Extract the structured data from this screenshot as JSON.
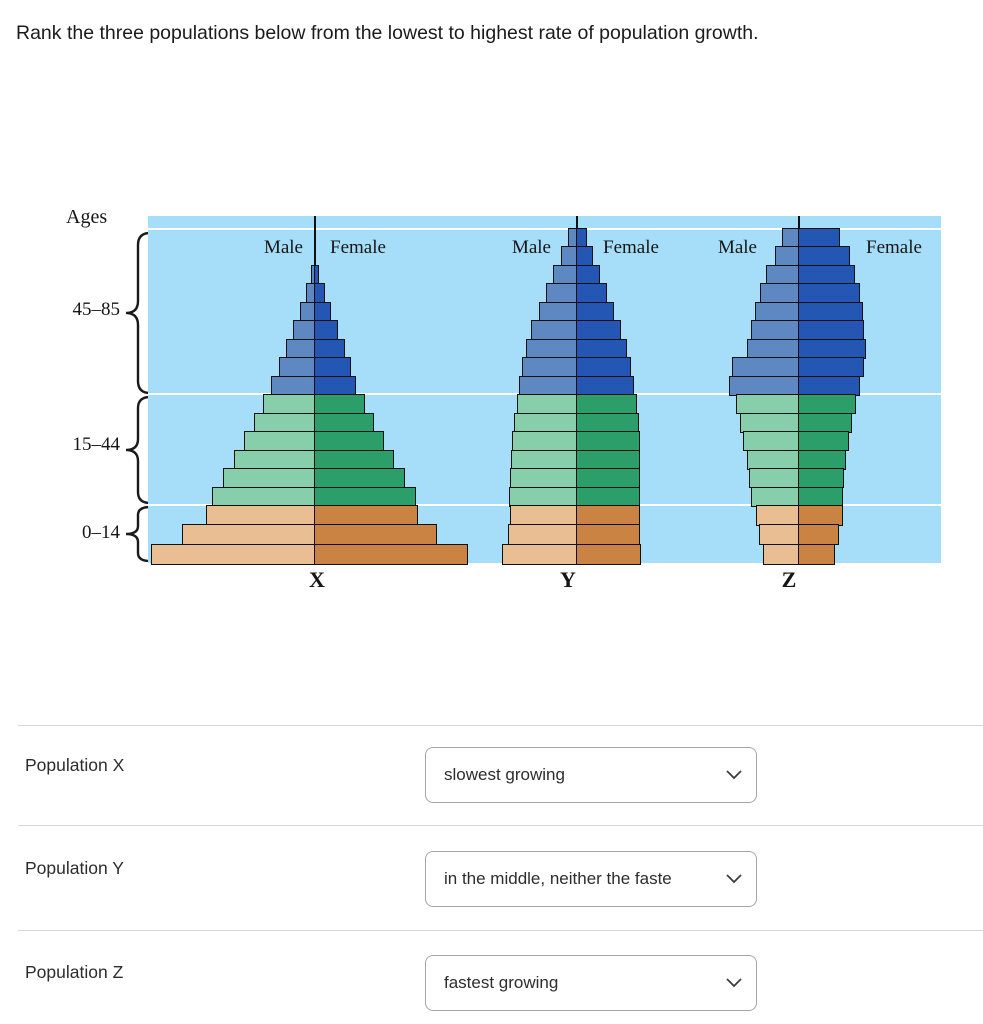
{
  "question": {
    "text": "Rank the three populations below from the lowest to highest rate of population growth."
  },
  "figure": {
    "background_color": "#a6ddf8",
    "ages_label": "Ages",
    "age_groups": [
      {
        "label": "45–85"
      },
      {
        "label": "15–44"
      },
      {
        "label": "0–14"
      }
    ],
    "colors": {
      "male_old": "#5d88c1",
      "female_old": "#2457b4",
      "male_middle": "#87cfab",
      "female_middle": "#2b9e69",
      "male_young": "#eabe93",
      "female_young": "#cb8344",
      "grid_line": "#ffffff",
      "bar_border": "#101010"
    }
  },
  "chart_data": {
    "type": "population_pyramid",
    "note": "Three population pyramids; bar half-widths are relative pixels (no numeric axis shown). Rows listed top to bottom within each age section.",
    "age_sections_order_top_to_bottom": [
      "45–85 (old, blue)",
      "15–44 (middle, green)",
      "0–14 (young, orange)"
    ],
    "panels": [
      {
        "name": "X",
        "male_label": "Male",
        "female_label": "Female",
        "shape": "expansive triangle (broad base)",
        "sections": {
          "old": {
            "male": [
              4,
              9,
              15,
              22,
              29,
              36,
              44
            ],
            "female": [
              4,
              10,
              16,
              23,
              30,
              36,
              41
            ]
          },
          "middle": {
            "male": [
              52,
              61,
              71,
              81,
              92,
              103
            ],
            "female": [
              50,
              59,
              69,
              79,
              90,
              101
            ]
          },
          "young": {
            "male": [
              109,
              133,
              164
            ],
            "female": [
              103,
              122,
              153
            ]
          }
        }
      },
      {
        "name": "Y",
        "male_label": "Male",
        "female_label": "Female",
        "shape": "tall dome with near-vertical sides",
        "sections": {
          "old": {
            "male": [
              9,
              16,
              24,
              31,
              38,
              46,
              51,
              55,
              58
            ],
            "female": [
              10,
              16,
              23,
              30,
              37,
              44,
              50,
              54,
              57
            ]
          },
          "middle": {
            "male": [
              60,
              63,
              65,
              66,
              67,
              68
            ],
            "female": [
              60,
              62,
              63,
              63,
              63,
              63
            ]
          },
          "young": {
            "male": [
              67,
              69,
              75
            ],
            "female": [
              63,
              63,
              64
            ]
          }
        }
      },
      {
        "name": "Z",
        "male_label": "Male",
        "female_label": "Female",
        "shape": "barrel, widest in middle, narrow base",
        "sections": {
          "old": {
            "male": [
              17,
              24,
              33,
              39,
              44,
              48,
              52,
              67,
              70
            ],
            "female": [
              41,
              51,
              56,
              61,
              64,
              65,
              67,
              65,
              61
            ]
          },
          "middle": {
            "male": [
              63,
              59,
              56,
              52,
              50,
              48
            ],
            "female": [
              57,
              53,
              50,
              47,
              45,
              44
            ]
          },
          "young": {
            "male": [
              43,
              40,
              36
            ],
            "female": [
              44,
              40,
              36
            ]
          }
        }
      }
    ]
  },
  "ranking": {
    "rows": [
      {
        "label": "Population X",
        "selected": "slowest growing"
      },
      {
        "label": "Population Y",
        "selected": "in the middle, neither the faste"
      },
      {
        "label": "Population Z",
        "selected": "fastest growing"
      }
    ]
  }
}
